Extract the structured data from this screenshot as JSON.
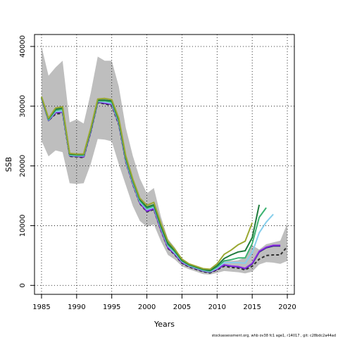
{
  "chart_data": {
    "type": "line",
    "xlabel": "Years",
    "ylabel": "SSB",
    "xlim": [
      1984,
      2021
    ],
    "ylim": [
      -1500,
      42000
    ],
    "xticks": [
      1985,
      1990,
      1995,
      2000,
      2005,
      2010,
      2015,
      2020
    ],
    "yticks": [
      0,
      10000,
      20000,
      30000,
      40000
    ],
    "grid": true,
    "footer": "stockassessment.org, whb ov38 fc1 age1, r14017 , git: c28bdc2a44ad",
    "colors": {
      "band": "#bebebe",
      "grid": "#000000",
      "axis": "#000000"
    },
    "confidence_band": {
      "x": [
        1985,
        1986,
        1987,
        1988,
        1989,
        1990,
        1991,
        1992,
        1993,
        1994,
        1995,
        1996,
        1997,
        1998,
        1999,
        2000,
        2001,
        2002,
        2003,
        2004,
        2005,
        2006,
        2007,
        2008,
        2009,
        2010,
        2011,
        2012,
        2013,
        2014,
        2015,
        2016,
        2017,
        2018,
        2019,
        2020
      ],
      "lower": [
        24200,
        21600,
        22600,
        22300,
        17100,
        17000,
        17100,
        20300,
        24500,
        24400,
        24100,
        20300,
        16800,
        13300,
        10800,
        9800,
        10200,
        7400,
        5100,
        4300,
        3200,
        2700,
        2300,
        1900,
        1800,
        2100,
        2400,
        2300,
        2200,
        2000,
        2300,
        3500,
        3900,
        3800,
        3600,
        4100
      ],
      "upper": [
        40000,
        35100,
        36500,
        37600,
        27300,
        27800,
        27100,
        32200,
        38300,
        37600,
        37600,
        33300,
        26400,
        21700,
        17900,
        15400,
        16300,
        11500,
        7800,
        6300,
        4400,
        3600,
        3200,
        2800,
        2600,
        3200,
        4300,
        4100,
        4200,
        4700,
        6700,
        6000,
        6900,
        7200,
        7500,
        10400
      ]
    },
    "series": [
      {
        "color": "#2e2e2e",
        "dashed": true,
        "x": [
          1985,
          1986,
          1987,
          1988,
          1989,
          1990,
          1991,
          1992,
          1993,
          1994,
          1995,
          1996,
          1997,
          1998,
          1999,
          2000,
          2001,
          2002,
          2003,
          2004,
          2005,
          2006,
          2007,
          2008,
          2009,
          2010,
          2011,
          2012,
          2013,
          2014,
          2015,
          2016,
          2017,
          2018,
          2019,
          2020
        ],
        "y": [
          31300,
          27600,
          28700,
          28800,
          21600,
          21500,
          21400,
          25600,
          30600,
          30400,
          30100,
          26900,
          20700,
          16900,
          13700,
          12300,
          12700,
          9200,
          6200,
          5100,
          3700,
          3100,
          2700,
          2300,
          2100,
          2600,
          3200,
          3000,
          2900,
          2600,
          3200,
          4400,
          5000,
          5100,
          5100,
          6500
        ]
      },
      {
        "color": "#191970",
        "x": [
          1985,
          1986,
          1987,
          1988,
          1989,
          1990,
          1991,
          1992,
          1993,
          1994,
          1995,
          1996,
          1997,
          1998,
          1999,
          2000,
          2001,
          2002,
          2003,
          2004,
          2005,
          2006,
          2007,
          2008,
          2009,
          2010,
          2011,
          2012,
          2013,
          2014,
          2015,
          2016,
          2017,
          2018,
          2019
        ],
        "y": [
          31300,
          27600,
          28900,
          29000,
          21700,
          21600,
          21500,
          25700,
          30700,
          30500,
          30300,
          27100,
          20800,
          17000,
          13800,
          12400,
          12800,
          9300,
          6300,
          5200,
          3800,
          3200,
          2800,
          2400,
          2200,
          2700,
          3400,
          3200,
          3100,
          2800,
          3600,
          5600,
          6300,
          6600,
          6600
        ]
      },
      {
        "color": "#8a2be2",
        "x": [
          1985,
          1986,
          1987,
          1988,
          1989,
          1990,
          1991,
          1992,
          1993,
          1994,
          1995,
          1996,
          1997,
          1998,
          1999,
          2000,
          2001,
          2002,
          2003,
          2004,
          2005,
          2006,
          2007,
          2008,
          2009,
          2010,
          2011,
          2012,
          2013,
          2014,
          2015,
          2016,
          2017,
          2018,
          2019
        ],
        "y": [
          31350,
          27650,
          28950,
          29050,
          21750,
          21650,
          21550,
          25750,
          30750,
          30550,
          30350,
          27150,
          20850,
          17050,
          13850,
          12450,
          12850,
          9350,
          6350,
          5250,
          3850,
          3250,
          2850,
          2450,
          2250,
          2750,
          3450,
          3250,
          3150,
          2850,
          3700,
          5700,
          6400,
          6700,
          6700
        ]
      },
      {
        "color": "#87ceeb",
        "x": [
          1985,
          1986,
          1987,
          1988,
          1989,
          1990,
          1991,
          1992,
          1993,
          1994,
          1995,
          1996,
          1997,
          1998,
          1999,
          2000,
          2001,
          2002,
          2003,
          2004,
          2005,
          2006,
          2007,
          2008,
          2009,
          2010,
          2011,
          2012,
          2013,
          2014,
          2015,
          2016,
          2017,
          2018
        ],
        "y": [
          31400,
          27700,
          29100,
          29200,
          21800,
          21700,
          21700,
          25900,
          30800,
          30700,
          30500,
          27300,
          21000,
          17200,
          14000,
          12700,
          13100,
          9600,
          6600,
          5400,
          4000,
          3300,
          2900,
          2500,
          2300,
          2900,
          3800,
          3800,
          3800,
          3700,
          5500,
          8800,
          10600,
          11900
        ]
      },
      {
        "color": "#3cb371",
        "x": [
          1985,
          1986,
          1987,
          1988,
          1989,
          1990,
          1991,
          1992,
          1993,
          1994,
          1995,
          1996,
          1997,
          1998,
          1999,
          2000,
          2001,
          2002,
          2003,
          2004,
          2005,
          2006,
          2007,
          2008,
          2009,
          2010,
          2011,
          2012,
          2013,
          2014,
          2015,
          2016,
          2017
        ],
        "y": [
          31500,
          27800,
          29300,
          29500,
          21900,
          21800,
          21800,
          26000,
          30900,
          30900,
          30700,
          27500,
          21200,
          17400,
          14200,
          12900,
          13300,
          9800,
          6800,
          5600,
          4100,
          3400,
          3000,
          2600,
          2400,
          3100,
          4100,
          4300,
          4600,
          4600,
          7000,
          11400,
          13000
        ]
      },
      {
        "color": "#1e7b3c",
        "x": [
          1985,
          1986,
          1987,
          1988,
          1989,
          1990,
          1991,
          1992,
          1993,
          1994,
          1995,
          1996,
          1997,
          1998,
          1999,
          2000,
          2001,
          2002,
          2003,
          2004,
          2005,
          2006,
          2007,
          2008,
          2009,
          2010,
          2011,
          2012,
          2013,
          2014,
          2015,
          2016
        ],
        "y": [
          31500,
          27900,
          29500,
          29700,
          22000,
          21900,
          21900,
          26100,
          31000,
          31000,
          30900,
          27700,
          21400,
          17600,
          14400,
          13100,
          13500,
          10000,
          7000,
          5800,
          4200,
          3500,
          3100,
          2700,
          2500,
          3300,
          4500,
          5100,
          5600,
          5800,
          8000,
          13500
        ]
      },
      {
        "color": "#9aa832",
        "x": [
          1985,
          1986,
          1987,
          1988,
          1989,
          1990,
          1991,
          1992,
          1993,
          1994,
          1995,
          1996,
          1997,
          1998,
          1999,
          2000,
          2001,
          2002,
          2003,
          2004,
          2005,
          2006,
          2007,
          2008,
          2009,
          2010,
          2011,
          2012,
          2013,
          2014,
          2015
        ],
        "y": [
          31600,
          28000,
          29700,
          29900,
          22100,
          22000,
          22000,
          26300,
          31200,
          31300,
          31100,
          28000,
          21700,
          17800,
          14600,
          13400,
          13900,
          10400,
          7400,
          6000,
          4400,
          3600,
          3200,
          2800,
          2700,
          3600,
          5200,
          5900,
          6800,
          7400,
          10500
        ]
      }
    ]
  }
}
